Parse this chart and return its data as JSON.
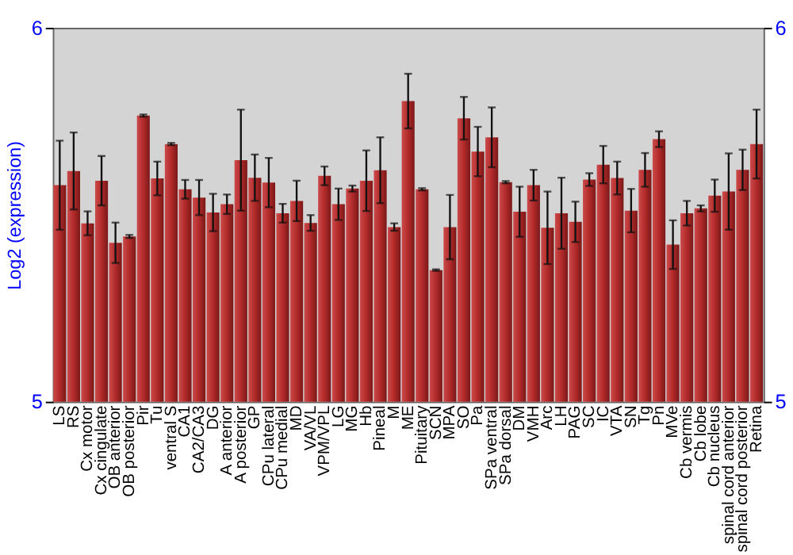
{
  "chart_data": {
    "type": "bar",
    "ylabel": "Log2 (expression)",
    "categories": [
      "LS",
      "RS",
      "Cx motor",
      "Cx cingulate",
      "OB anterior",
      "OB posterior",
      "Pir",
      "Tu",
      "ventral S",
      "CA1",
      "CA2/CA3",
      "DG",
      "A anterior",
      "A posterior",
      "GP",
      "CPu lateral",
      "CPu medial",
      "MD",
      "VA/VL",
      "VPM/VPL",
      "LG",
      "MG",
      "Hb",
      "Pineal",
      "M",
      "ME",
      "Pituitary",
      "SCN",
      "MPA",
      "SO",
      "Pa",
      "SPa ventral",
      "SPa dorsal",
      "DM",
      "VMH",
      "Arc",
      "LH",
      "PAG",
      "SC",
      "IC",
      "VTA",
      "SN",
      "Tg",
      "Pn",
      "MVe",
      "Cb vermis",
      "Cb lobe",
      "Cb nucleus",
      "spinal cord anterior",
      "spinal cord posterior",
      "Retina"
    ],
    "values": [
      5.579,
      5.617,
      5.477,
      5.591,
      5.425,
      5.442,
      5.765,
      5.597,
      5.689,
      5.568,
      5.546,
      5.506,
      5.528,
      5.646,
      5.599,
      5.586,
      5.504,
      5.537,
      5.478,
      5.604,
      5.528,
      5.57,
      5.591,
      5.619,
      5.467,
      5.804,
      5.568,
      5.352,
      5.467,
      5.758,
      5.669,
      5.707,
      5.587,
      5.508,
      5.579,
      5.465,
      5.504,
      5.481,
      5.594,
      5.634,
      5.598,
      5.511,
      5.62,
      5.702,
      5.42,
      5.504,
      5.517,
      5.551,
      5.562,
      5.62,
      5.689
    ],
    "errors": [
      0.119,
      0.103,
      0.032,
      0.066,
      0.054,
      0.004,
      0.003,
      0.045,
      0.003,
      0.025,
      0.047,
      0.05,
      0.026,
      0.135,
      0.062,
      0.066,
      0.025,
      0.054,
      0.021,
      0.025,
      0.042,
      0.008,
      0.081,
      0.088,
      0.01,
      0.073,
      0.003,
      0.002,
      0.086,
      0.057,
      0.066,
      0.08,
      0.003,
      0.067,
      0.041,
      0.097,
      0.095,
      0.054,
      0.017,
      0.05,
      0.044,
      0.058,
      0.045,
      0.021,
      0.065,
      0.033,
      0.008,
      0.043,
      0.102,
      0.054,
      0.092
    ],
    "color": "#b22a2a",
    "ylim": [
      5,
      6
    ],
    "yticks": [
      5,
      6
    ],
    "y2lim": [
      5,
      6
    ],
    "y2ticks": [
      5,
      6
    ],
    "grid": false
  }
}
